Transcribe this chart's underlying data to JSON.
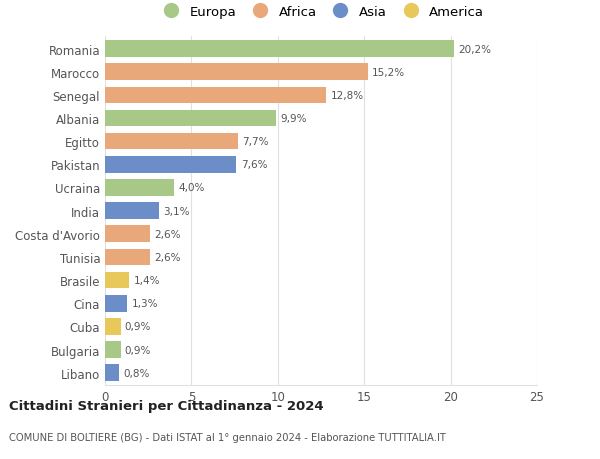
{
  "countries": [
    "Romania",
    "Marocco",
    "Senegal",
    "Albania",
    "Egitto",
    "Pakistan",
    "Ucraina",
    "India",
    "Costa d'Avorio",
    "Tunisia",
    "Brasile",
    "Cina",
    "Cuba",
    "Bulgaria",
    "Libano"
  ],
  "values": [
    20.2,
    15.2,
    12.8,
    9.9,
    7.7,
    7.6,
    4.0,
    3.1,
    2.6,
    2.6,
    1.4,
    1.3,
    0.9,
    0.9,
    0.8
  ],
  "labels": [
    "20,2%",
    "15,2%",
    "12,8%",
    "9,9%",
    "7,7%",
    "7,6%",
    "4,0%",
    "3,1%",
    "2,6%",
    "2,6%",
    "1,4%",
    "1,3%",
    "0,9%",
    "0,9%",
    "0,8%"
  ],
  "continents": [
    "Europa",
    "Africa",
    "Africa",
    "Europa",
    "Africa",
    "Asia",
    "Europa",
    "Asia",
    "Africa",
    "Africa",
    "America",
    "Asia",
    "America",
    "Europa",
    "Asia"
  ],
  "colors": {
    "Europa": "#a8c888",
    "Africa": "#e8a87a",
    "Asia": "#6b8ec8",
    "America": "#e8c85a"
  },
  "legend_order": [
    "Europa",
    "Africa",
    "Asia",
    "America"
  ],
  "title": "Cittadini Stranieri per Cittadinanza - 2024",
  "subtitle": "COMUNE DI BOLTIERE (BG) - Dati ISTAT al 1° gennaio 2024 - Elaborazione TUTTITALIA.IT",
  "xlim": [
    0,
    25
  ],
  "xticks": [
    0,
    5,
    10,
    15,
    20,
    25
  ],
  "background_color": "#ffffff",
  "grid_color": "#e0e0e0"
}
